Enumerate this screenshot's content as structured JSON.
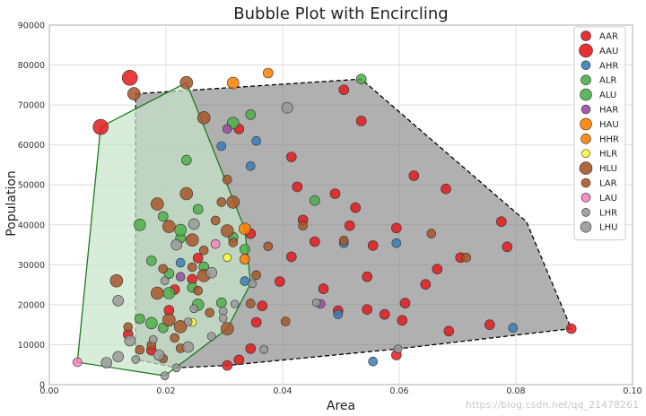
{
  "chart_data": {
    "type": "scatter",
    "title": "Bubble Plot with Encircling",
    "xlabel": "Area",
    "ylabel": "Population",
    "xlim": [
      0.0,
      0.1
    ],
    "ylim": [
      0,
      90000
    ],
    "x_ticks": [
      0.0,
      0.02,
      0.04,
      0.06,
      0.08,
      0.1
    ],
    "x_tick_labels": [
      "0.00",
      "0.02",
      "0.04",
      "0.06",
      "0.08",
      "0.10"
    ],
    "y_ticks": [
      0,
      10000,
      20000,
      30000,
      40000,
      50000,
      60000,
      70000,
      80000,
      90000
    ],
    "y_tick_labels": [
      "0",
      "10000",
      "20000",
      "30000",
      "40000",
      "50000",
      "60000",
      "70000",
      "80000",
      "90000"
    ],
    "grid": true,
    "legend_position": "top-right",
    "series": [
      {
        "name": "AAR",
        "color": "#e41a1c",
        "size": 11,
        "points": [
          [
            0.0505,
            73800
          ],
          [
            0.0535,
            66000
          ],
          [
            0.0415,
            57000
          ],
          [
            0.0325,
            64000
          ],
          [
            0.0425,
            49500
          ],
          [
            0.049,
            47800
          ],
          [
            0.0515,
            39800
          ],
          [
            0.0595,
            39200
          ],
          [
            0.0625,
            52300
          ],
          [
            0.068,
            49000
          ],
          [
            0.0705,
            31800
          ],
          [
            0.061,
            20400
          ],
          [
            0.047,
            24000
          ],
          [
            0.0545,
            18800
          ],
          [
            0.0575,
            17600
          ],
          [
            0.0605,
            16100
          ],
          [
            0.0495,
            18500
          ],
          [
            0.0545,
            27000
          ],
          [
            0.0415,
            32000
          ],
          [
            0.0395,
            25800
          ],
          [
            0.0355,
            15600
          ],
          [
            0.0345,
            9000
          ],
          [
            0.0325,
            6200
          ],
          [
            0.0305,
            4800
          ],
          [
            0.0785,
            34500
          ],
          [
            0.0775,
            40800
          ],
          [
            0.0895,
            14000
          ],
          [
            0.0755,
            15000
          ],
          [
            0.0685,
            13400
          ],
          [
            0.0455,
            35800
          ],
          [
            0.0365,
            19700
          ],
          [
            0.0255,
            31700
          ],
          [
            0.0245,
            26400
          ],
          [
            0.0215,
            23800
          ],
          [
            0.0205,
            18600
          ],
          [
            0.0135,
            12600
          ],
          [
            0.0175,
            8600
          ],
          [
            0.0595,
            7400
          ],
          [
            0.0665,
            28900
          ],
          [
            0.0525,
            44300
          ],
          [
            0.0435,
            41200
          ],
          [
            0.0345,
            37800
          ],
          [
            0.0555,
            34800
          ],
          [
            0.0645,
            25100
          ]
        ]
      },
      {
        "name": "AAU",
        "color": "#e41a1c",
        "size": 17,
        "points": [
          [
            0.0088,
            64500
          ],
          [
            0.0138,
            76800
          ]
        ]
      },
      {
        "name": "AHR",
        "color": "#377eb8",
        "size": 10,
        "points": [
          [
            0.0505,
            35400
          ],
          [
            0.0595,
            35400
          ],
          [
            0.0795,
            14200
          ],
          [
            0.0555,
            5800
          ],
          [
            0.0495,
            17600
          ],
          [
            0.0345,
            54700
          ],
          [
            0.0355,
            61000
          ],
          [
            0.0295,
            59700
          ],
          [
            0.0335,
            25900
          ],
          [
            0.0225,
            30500
          ]
        ]
      },
      {
        "name": "ALR",
        "color": "#4daf4a",
        "size": 11,
        "points": [
          [
            0.0535,
            76500
          ],
          [
            0.0345,
            67600
          ],
          [
            0.0455,
            46100
          ],
          [
            0.0235,
            56200
          ],
          [
            0.0255,
            43900
          ],
          [
            0.0195,
            42100
          ],
          [
            0.0225,
            36700
          ],
          [
            0.0205,
            27800
          ],
          [
            0.0175,
            31000
          ],
          [
            0.0155,
            16500
          ],
          [
            0.0195,
            14200
          ],
          [
            0.0245,
            24300
          ],
          [
            0.0295,
            20500
          ],
          [
            0.0265,
            29500
          ],
          [
            0.0335,
            33900
          ],
          [
            0.0315,
            36900
          ]
        ]
      },
      {
        "name": "ALU",
        "color": "#4daf4a",
        "size": 13,
        "points": [
          [
            0.0155,
            40000
          ],
          [
            0.0225,
            38700
          ],
          [
            0.0315,
            65500
          ],
          [
            0.0175,
            15400
          ],
          [
            0.0205,
            22900
          ],
          [
            0.0255,
            20000
          ]
        ]
      },
      {
        "name": "HAR",
        "color": "#984ea3",
        "size": 10,
        "points": [
          [
            0.0465,
            20200
          ],
          [
            0.0305,
            64000
          ],
          [
            0.0225,
            27000
          ]
        ]
      },
      {
        "name": "HAU",
        "color": "#ff7f00",
        "size": 13,
        "points": [
          [
            0.0315,
            75500
          ],
          [
            0.0335,
            39000
          ]
        ]
      },
      {
        "name": "HHR",
        "color": "#ff7f00",
        "size": 11,
        "points": [
          [
            0.0375,
            78000
          ],
          [
            0.0335,
            31400
          ]
        ]
      },
      {
        "name": "HLR",
        "color": "#ffff33",
        "size": 9,
        "points": [
          [
            0.0245,
            15600
          ],
          [
            0.0305,
            31800
          ]
        ]
      },
      {
        "name": "HLU",
        "color": "#a65628",
        "size": 14,
        "points": [
          [
            0.0145,
            72800
          ],
          [
            0.0235,
            75600
          ],
          [
            0.0265,
            66800
          ],
          [
            0.0235,
            47800
          ],
          [
            0.0185,
            45200
          ],
          [
            0.0315,
            45700
          ],
          [
            0.0305,
            38500
          ],
          [
            0.0205,
            39600
          ],
          [
            0.0245,
            36200
          ],
          [
            0.0265,
            27300
          ],
          [
            0.0185,
            22900
          ],
          [
            0.0115,
            26000
          ],
          [
            0.0205,
            16200
          ],
          [
            0.0225,
            14500
          ],
          [
            0.0305,
            14000
          ]
        ]
      },
      {
        "name": "LAR",
        "color": "#a65628",
        "size": 10,
        "points": [
          [
            0.0135,
            14400
          ],
          [
            0.0155,
            8700
          ],
          [
            0.0175,
            9900
          ],
          [
            0.0195,
            6500
          ],
          [
            0.0215,
            11700
          ],
          [
            0.0245,
            29400
          ],
          [
            0.0255,
            23500
          ],
          [
            0.0275,
            18000
          ],
          [
            0.0285,
            41100
          ],
          [
            0.0295,
            45700
          ],
          [
            0.0305,
            51300
          ],
          [
            0.0315,
            35600
          ],
          [
            0.0355,
            27400
          ],
          [
            0.0375,
            34600
          ],
          [
            0.0405,
            15800
          ],
          [
            0.0435,
            39800
          ],
          [
            0.0505,
            36100
          ],
          [
            0.0655,
            37800
          ],
          [
            0.0715,
            31800
          ],
          [
            0.0345,
            20300
          ],
          [
            0.0225,
            9100
          ],
          [
            0.0265,
            33600
          ],
          [
            0.0195,
            29000
          ]
        ]
      },
      {
        "name": "LAU",
        "color": "#f781bf",
        "size": 10,
        "points": [
          [
            0.0048,
            5600
          ],
          [
            0.0285,
            35200
          ]
        ]
      },
      {
        "name": "LHR",
        "color": "#999999",
        "size": 9,
        "points": [
          [
            0.0148,
            6300
          ],
          [
            0.0178,
            11300
          ],
          [
            0.0198,
            2200
          ],
          [
            0.0218,
            4200
          ],
          [
            0.0238,
            15700
          ],
          [
            0.0298,
            18400
          ],
          [
            0.0318,
            20200
          ],
          [
            0.0348,
            25300
          ],
          [
            0.0458,
            20500
          ],
          [
            0.0598,
            8900
          ],
          [
            0.0368,
            8800
          ],
          [
            0.0278,
            12100
          ],
          [
            0.0298,
            16600
          ],
          [
            0.0198,
            26000
          ],
          [
            0.0248,
            19000
          ]
        ]
      },
      {
        "name": "LHU",
        "color": "#999999",
        "size": 12,
        "points": [
          [
            0.0098,
            5500
          ],
          [
            0.0118,
            7000
          ],
          [
            0.0138,
            11000
          ],
          [
            0.0118,
            21000
          ],
          [
            0.0408,
            69300
          ],
          [
            0.0248,
            40200
          ],
          [
            0.0218,
            35000
          ],
          [
            0.0278,
            28000
          ],
          [
            0.0188,
            7400
          ],
          [
            0.0238,
            9400
          ]
        ]
      }
    ],
    "encircled_groups": [
      {
        "fill": "#7f7f7f",
        "edge": "#000000",
        "points": [
          [
            0.0148,
            72800
          ],
          [
            0.0535,
            76500
          ],
          [
            0.0818,
            40800
          ],
          [
            0.0895,
            14000
          ],
          [
            0.0595,
            8900
          ],
          [
            0.0305,
            4800
          ],
          [
            0.0218,
            4200
          ],
          [
            0.0148,
            6300
          ]
        ]
      },
      {
        "fill": "#c8e6c9",
        "edge": "#1f7a1f",
        "points": [
          [
            0.0048,
            5600
          ],
          [
            0.0088,
            64500
          ],
          [
            0.0235,
            75600
          ],
          [
            0.0335,
            39000
          ],
          [
            0.0345,
            25300
          ],
          [
            0.0305,
            14000
          ],
          [
            0.0198,
            2200
          ]
        ]
      }
    ]
  },
  "watermark": "https://blog.csdn.net/qq_21478261"
}
